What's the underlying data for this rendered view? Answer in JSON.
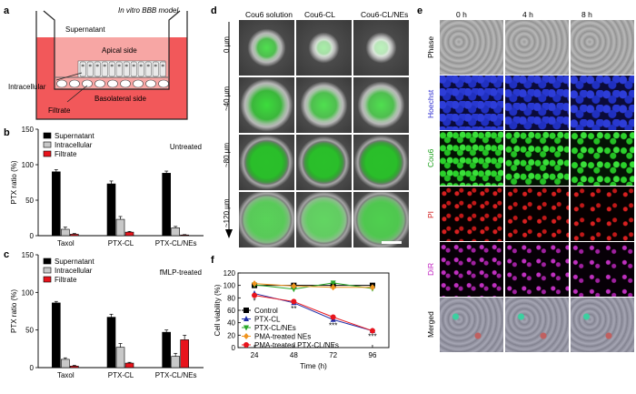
{
  "panel_labels": {
    "a": "a",
    "b": "b",
    "c": "c",
    "d": "d",
    "e": "e",
    "f": "f"
  },
  "panel_a": {
    "title": "In vitro BBB model",
    "supernatant": "Supernatant",
    "apical": "Apical side",
    "intracellular": "Intracellular",
    "basolateral": "Basolateral side",
    "filtrate": "Filtrate"
  },
  "legend_items": {
    "supernatant": "Supernatant",
    "intracellular": "Intracellular",
    "filtrate": "Filtrate"
  },
  "colors": {
    "supernatant": "#000000",
    "intracellular": "#c8c8c8",
    "filtrate": "#e8141c",
    "chamber": "#f2585a",
    "apical": "#f7a6a4"
  },
  "chart_data": [
    {
      "type": "bar",
      "panel": "b",
      "annotation": "Untreated",
      "ylabel": "PTX ratio (%)",
      "ylim": [
        0,
        150
      ],
      "yticks": [
        0,
        50,
        100,
        150
      ],
      "categories": [
        "Taxol",
        "PTX-CL",
        "PTX-CL/NEs"
      ],
      "series": [
        {
          "name": "Supernatant",
          "values": [
            90,
            73,
            88
          ],
          "errors": [
            3,
            4,
            3
          ]
        },
        {
          "name": "Intracellular",
          "values": [
            9,
            23,
            11
          ],
          "errors": [
            3,
            4,
            2
          ]
        },
        {
          "name": "Filtrate",
          "values": [
            2,
            5,
            1
          ],
          "errors": [
            1,
            1,
            0.5
          ]
        }
      ],
      "legend": "top-left"
    },
    {
      "type": "bar",
      "panel": "c",
      "annotation": "fMLP-treated",
      "ylabel": "PTX ratio (%)",
      "ylim": [
        0,
        150
      ],
      "yticks": [
        0,
        50,
        100,
        150
      ],
      "categories": [
        "Taxol",
        "PTX-CL",
        "PTX-CL/NEs"
      ],
      "series": [
        {
          "name": "Supernatant",
          "values": [
            86,
            67,
            47
          ],
          "errors": [
            2,
            4,
            3
          ]
        },
        {
          "name": "Intracellular",
          "values": [
            11,
            27,
            15
          ],
          "errors": [
            2,
            5,
            4
          ]
        },
        {
          "name": "Filtrate",
          "values": [
            2,
            6,
            37
          ],
          "errors": [
            1,
            1,
            6
          ]
        }
      ],
      "legend": "top-left"
    },
    {
      "type": "line",
      "panel": "f",
      "xlabel": "Time (h)",
      "ylabel": "Cell viability (%)",
      "x": [
        24,
        48,
        72,
        96
      ],
      "xlim": [
        14,
        106
      ],
      "ylim": [
        0,
        120
      ],
      "yticks": [
        0,
        20,
        40,
        60,
        80,
        100,
        120
      ],
      "series": [
        {
          "name": "Control",
          "color": "#000000",
          "marker": "square",
          "values": [
            100,
            100,
            100,
            100
          ]
        },
        {
          "name": "PTX-CL",
          "color": "#1f2ea8",
          "marker": "triangle-up",
          "values": [
            87,
            72,
            45,
            27
          ]
        },
        {
          "name": "PTX-CL/NEs",
          "color": "#2aa82a",
          "marker": "triangle-down",
          "values": [
            101,
            94,
            104,
            95
          ]
        },
        {
          "name": "PMA-treated NEs",
          "color": "#f0941f",
          "marker": "diamond",
          "values": [
            103,
            99,
            97,
            97
          ]
        },
        {
          "name": "PMA-treated PTX-CL/NEs",
          "color": "#e8141c",
          "marker": "circle",
          "values": [
            84,
            74,
            49,
            27
          ]
        }
      ],
      "annotations": [
        {
          "x": 24,
          "text": "*"
        },
        {
          "x": 48,
          "text": "**"
        },
        {
          "x": 72,
          "text": "***"
        },
        {
          "x": 96,
          "text": "***"
        }
      ],
      "legend": "bottom-left"
    }
  ],
  "panel_d": {
    "columns": [
      "Cou6 solution",
      "Cou6-CL",
      "Cou6-CL/NEs"
    ],
    "rows": [
      "0 µm",
      "~40 µm",
      "~80 µm",
      "~120 µm"
    ]
  },
  "panel_e": {
    "columns": [
      "0 h",
      "4 h",
      "8 h"
    ],
    "rows": [
      {
        "label": "Phase",
        "color": "#000000"
      },
      {
        "label": "Hoechst",
        "color": "#2a2ad0"
      },
      {
        "label": "Cou6",
        "color": "#1aa01a"
      },
      {
        "label": "PI",
        "color": "#d01a1a"
      },
      {
        "label": "DiR",
        "color": "#c020c0"
      },
      {
        "label": "Merged",
        "color": "#000000"
      }
    ]
  }
}
